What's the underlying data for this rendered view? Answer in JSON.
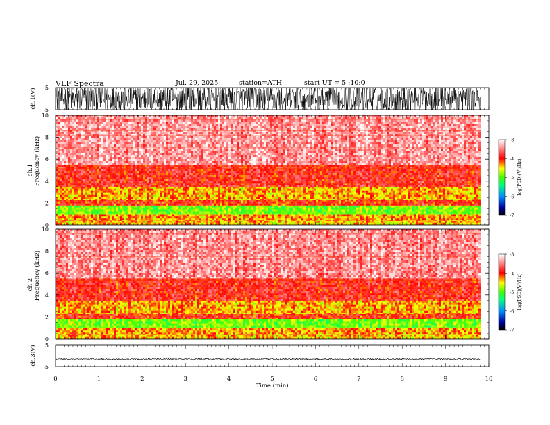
{
  "header": {
    "title": "VLF  Spectra",
    "date": "Jul.  29,  2025",
    "station": "station=ATH",
    "start": "start  UT  =    5  :10:0"
  },
  "chart_data": [
    {
      "type": "line",
      "ylabel": "ch.1(V)",
      "ylim": [
        -5,
        5
      ],
      "yticks": [
        "5",
        "-5"
      ],
      "xlim": [
        0,
        10
      ],
      "series": [
        {
          "values_desc": "dense noisy waveform",
          "amplitude_range": [
            -5,
            5
          ]
        }
      ]
    },
    {
      "type": "heatmap",
      "ylabel": "ch.1\nFrequency (kHz)",
      "ylabel_lines": [
        "ch.1",
        "Frequency  (kHz)"
      ],
      "ylim": [
        0,
        10
      ],
      "yticks": [
        "0",
        "2",
        "4",
        "6",
        "8",
        "10"
      ],
      "xlim": [
        0,
        10
      ],
      "data_extent_x": [
        0,
        9.8
      ],
      "bands": [
        {
          "from": 0.0,
          "to": 0.4,
          "level": -4.4
        },
        {
          "from": 0.4,
          "to": 1.0,
          "level": -4.3
        },
        {
          "from": 1.0,
          "to": 1.8,
          "level": -4.9
        },
        {
          "from": 1.8,
          "to": 2.3,
          "level": -4.0
        },
        {
          "from": 2.3,
          "to": 3.5,
          "level": -4.35
        },
        {
          "from": 3.5,
          "to": 5.5,
          "level": -3.9
        },
        {
          "from": 5.5,
          "to": 10.0,
          "level": -3.4
        }
      ],
      "colorbar": {
        "label": "log(PSD)(V²/Hz)",
        "range": [
          -7,
          -3
        ],
        "ticks": [
          "-3",
          "-4",
          "-5",
          "-6",
          "-7"
        ]
      }
    },
    {
      "type": "heatmap",
      "ylabel": "ch.2\nFrequency (kHz)",
      "ylabel_lines": [
        "ch.2",
        "Frequency  (kHz)"
      ],
      "ylim": [
        0,
        10
      ],
      "yticks": [
        "0",
        "2",
        "4",
        "6",
        "8",
        "10"
      ],
      "xlim": [
        0,
        10
      ],
      "data_extent_x": [
        0,
        9.8
      ],
      "bands": [
        {
          "from": 0.0,
          "to": 0.4,
          "level": -4.4
        },
        {
          "from": 0.4,
          "to": 1.0,
          "level": -4.3
        },
        {
          "from": 1.0,
          "to": 1.8,
          "level": -4.9
        },
        {
          "from": 1.8,
          "to": 2.3,
          "level": -4.0
        },
        {
          "from": 2.3,
          "to": 3.5,
          "level": -4.35
        },
        {
          "from": 3.5,
          "to": 5.5,
          "level": -3.9
        },
        {
          "from": 5.5,
          "to": 10.0,
          "level": -3.45
        }
      ],
      "colorbar": {
        "label": "log(PSD)(V²/Hz)",
        "range": [
          -7,
          -3
        ],
        "ticks": [
          "-3",
          "-4",
          "-5",
          "-6",
          "-7"
        ]
      }
    },
    {
      "type": "line",
      "ylabel": "ch.3(V)",
      "ylim": [
        -5,
        5
      ],
      "yticks": [
        "5",
        "-5"
      ],
      "xlim": [
        0,
        10
      ],
      "xlabel": "Time  (min)",
      "xticks": [
        "0",
        "1",
        "2",
        "3",
        "4",
        "5",
        "6",
        "7",
        "8",
        "9",
        "10"
      ],
      "series": [
        {
          "values_desc": "near-flat waveform",
          "center": -1.5,
          "amplitude_range": [
            -2,
            -1
          ]
        }
      ]
    }
  ],
  "colors": {
    "axis": "#000000",
    "waveform": "#000000"
  }
}
